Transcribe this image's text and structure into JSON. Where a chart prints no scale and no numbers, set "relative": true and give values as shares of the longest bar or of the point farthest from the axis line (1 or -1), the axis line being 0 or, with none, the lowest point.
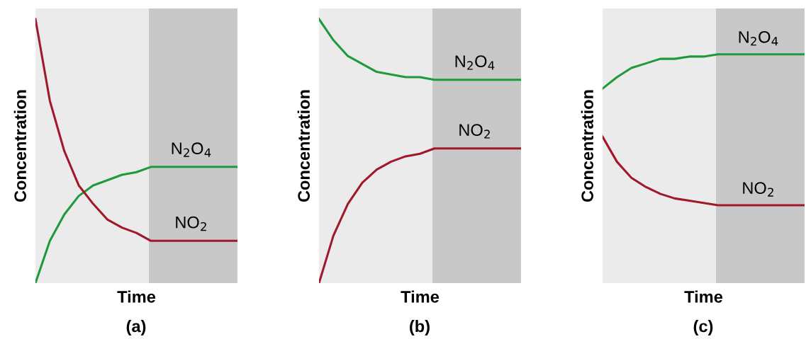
{
  "chart_data": [
    {
      "type": "line",
      "relative": true,
      "xlabel": "Time",
      "ylabel": "Concentration",
      "annotations": [
        "(a)"
      ],
      "grid": false,
      "legend": false,
      "categories": [
        null,
        null,
        null,
        null,
        null,
        null,
        null,
        null,
        null,
        null,
        null,
        null,
        null,
        null,
        null
      ],
      "series": [
        {
          "name": "N$_{2}$O$_{4}$",
          "color": "#1e9a3c",
          "values": [
            0,
            0.16,
            0.26,
            0.33,
            0.37,
            0.39,
            0.41,
            0.42,
            0.44,
            0.44,
            0.44,
            0.44,
            0.44,
            0.44,
            0.44
          ]
        },
        {
          "name": "NO$_{2}$",
          "color": "#a0182a",
          "values": [
            1,
            0.69,
            0.5,
            0.37,
            0.3,
            0.24,
            0.21,
            0.19,
            0.16,
            0.16,
            0.16,
            0.16,
            0.16,
            0.16,
            0.16
          ]
        }
      ]
    },
    {
      "type": "line",
      "relative": true,
      "xlabel": "Time",
      "ylabel": "Concentration",
      "annotations": [
        "(b)"
      ],
      "grid": false,
      "legend": false,
      "categories": [
        null,
        null,
        null,
        null,
        null,
        null,
        null,
        null,
        null,
        null,
        null,
        null,
        null,
        null,
        null
      ],
      "series": [
        {
          "name": "N$_{2}$O$_{4}$",
          "color": "#1e9a3c",
          "values": [
            1,
            0.92,
            0.86,
            0.83,
            0.8,
            0.79,
            0.78,
            0.78,
            0.77,
            0.77,
            0.77,
            0.77,
            0.77,
            0.77,
            0.77
          ]
        },
        {
          "name": "NO$_{2}$",
          "color": "#a0182a",
          "values": [
            0,
            0.18,
            0.3,
            0.38,
            0.43,
            0.46,
            0.48,
            0.49,
            0.51,
            0.51,
            0.51,
            0.51,
            0.51,
            0.51,
            0.51
          ]
        }
      ]
    },
    {
      "type": "line",
      "relative": true,
      "xlabel": "Time",
      "ylabel": "Concentration",
      "annotations": [
        "(c)"
      ],
      "grid": false,
      "legend": false,
      "categories": [
        null,
        null,
        null,
        null,
        null,
        null,
        null,
        null,
        null,
        null,
        null,
        null,
        null,
        null,
        null
      ],
      "series": [
        {
          "name": "N$_{2}$O$_{4}$",
          "color": "#1e9a3c",
          "values": [
            0.85,
            0.9,
            0.94,
            0.96,
            0.98,
            0.98,
            0.99,
            0.99,
            1,
            1,
            1,
            1,
            1,
            1,
            1
          ]
        },
        {
          "name": "NO$_{2}$",
          "color": "#a0182a",
          "values": [
            0.64,
            0.53,
            0.46,
            0.42,
            0.39,
            0.37,
            0.36,
            0.35,
            0.34,
            0.34,
            0.34,
            0.34,
            0.34,
            0.34,
            0.34
          ]
        }
      ]
    }
  ]
}
